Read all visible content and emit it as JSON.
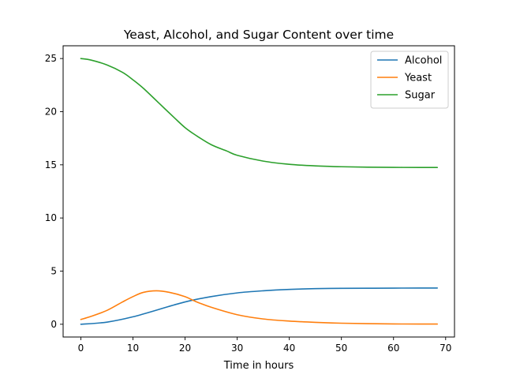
{
  "chart_data": {
    "type": "line",
    "title": "Yeast, Alcohol, and Sugar Content over time",
    "xlabel": "Time in hours",
    "ylabel": "",
    "xlim": [
      -3.4,
      71.7
    ],
    "ylim": [
      -1.2,
      26.2
    ],
    "x_ticks": [
      0,
      10,
      20,
      30,
      40,
      50,
      60,
      70
    ],
    "y_ticks": [
      0,
      5,
      10,
      15,
      20,
      25
    ],
    "grid": false,
    "legend": "top-right",
    "series": [
      {
        "name": "Alcohol",
        "color": "#1f77b4",
        "x": [
          0,
          5,
          10,
          15,
          20,
          25,
          30,
          35,
          40,
          45,
          50,
          55,
          60,
          65,
          68.4
        ],
        "y": [
          0.0,
          0.2,
          0.7,
          1.4,
          2.1,
          2.6,
          2.95,
          3.15,
          3.28,
          3.35,
          3.38,
          3.39,
          3.4,
          3.41,
          3.41
        ]
      },
      {
        "name": "Yeast",
        "color": "#ff7f0e",
        "x": [
          0,
          2,
          5,
          8,
          10,
          12,
          14.5,
          17,
          20,
          22,
          25,
          30,
          35,
          40,
          45,
          50,
          55,
          60,
          65,
          68.4
        ],
        "y": [
          0.45,
          0.75,
          1.3,
          2.1,
          2.6,
          3.0,
          3.15,
          3.0,
          2.6,
          2.15,
          1.6,
          0.9,
          0.5,
          0.3,
          0.18,
          0.1,
          0.06,
          0.03,
          0.02,
          0.02
        ]
      },
      {
        "name": "Sugar",
        "color": "#2ca02c",
        "x": [
          0,
          2,
          5,
          8,
          10,
          12,
          15,
          18,
          20,
          22,
          25,
          28,
          30,
          35,
          40,
          45,
          50,
          55,
          60,
          65,
          68.4
        ],
        "y": [
          25.0,
          24.85,
          24.4,
          23.7,
          23.0,
          22.2,
          20.8,
          19.4,
          18.5,
          17.8,
          16.9,
          16.3,
          15.9,
          15.35,
          15.05,
          14.9,
          14.82,
          14.78,
          14.76,
          14.75,
          14.75
        ]
      }
    ]
  }
}
